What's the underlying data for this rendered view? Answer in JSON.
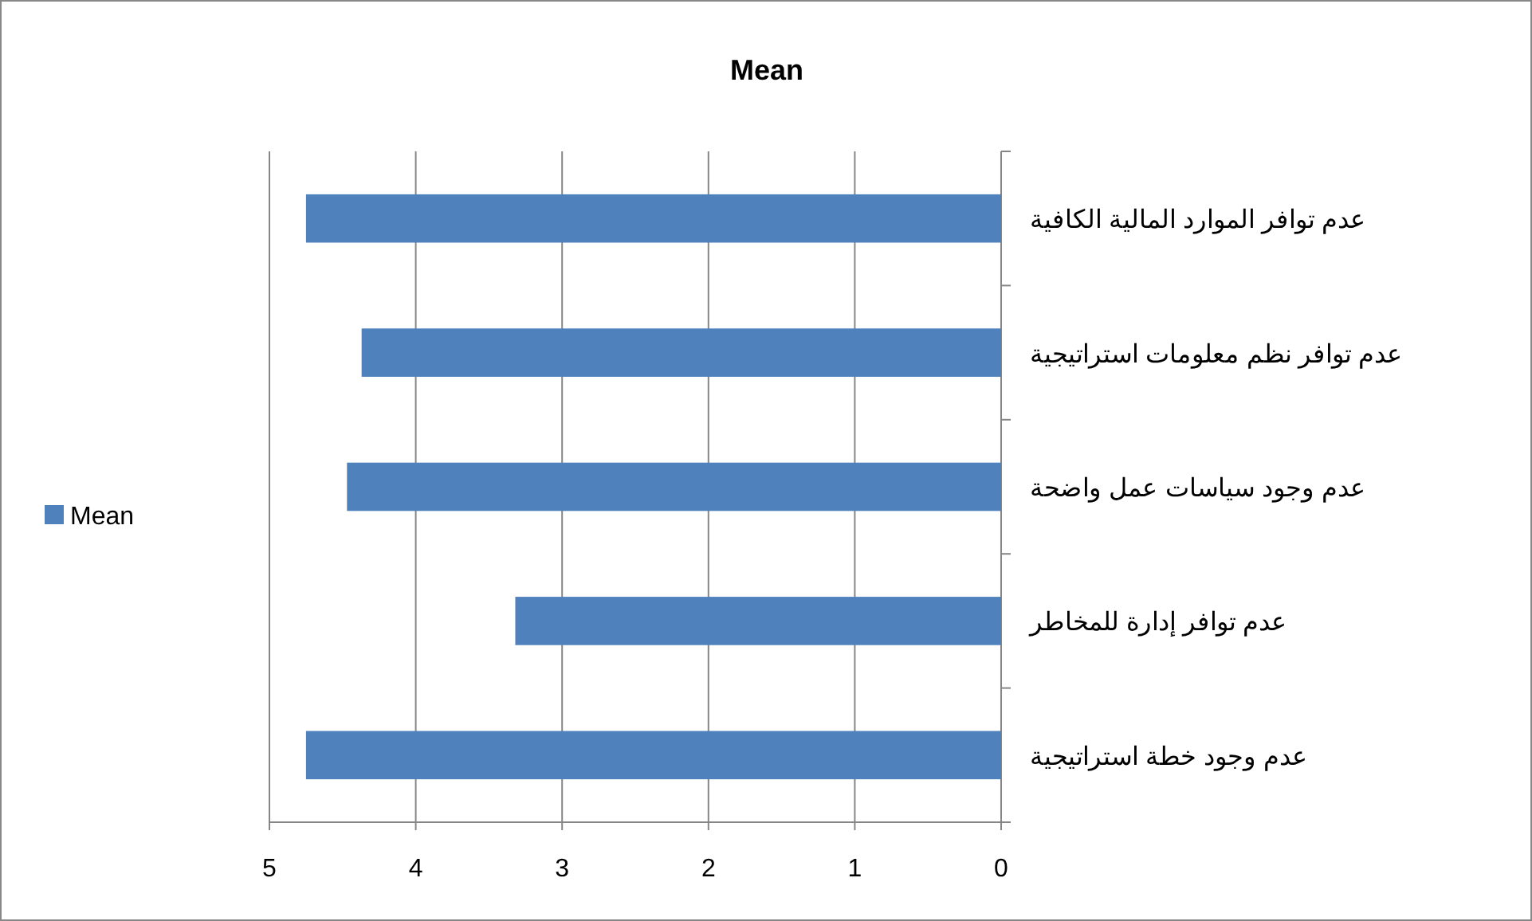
{
  "chart_data": {
    "type": "bar",
    "orientation": "horizontal",
    "title": "Mean",
    "categories": [
      "عدم توافر الموارد المالية الكافية",
      "عدم توافر نظم معلومات استراتيجية",
      "عدم وجود سياسات عمل واضحة",
      "عدم توافر إدارة للمخاطر",
      "عدم وجود خطة استراتيجية"
    ],
    "series": [
      {
        "name": "Mean",
        "color": "#4f81bd",
        "values": [
          4.75,
          4.37,
          4.47,
          3.32,
          4.75
        ]
      }
    ],
    "xlim": [
      5,
      0
    ],
    "xticks": [
      5,
      4,
      3,
      2,
      1,
      0
    ],
    "grid": "x",
    "legend": "left"
  }
}
